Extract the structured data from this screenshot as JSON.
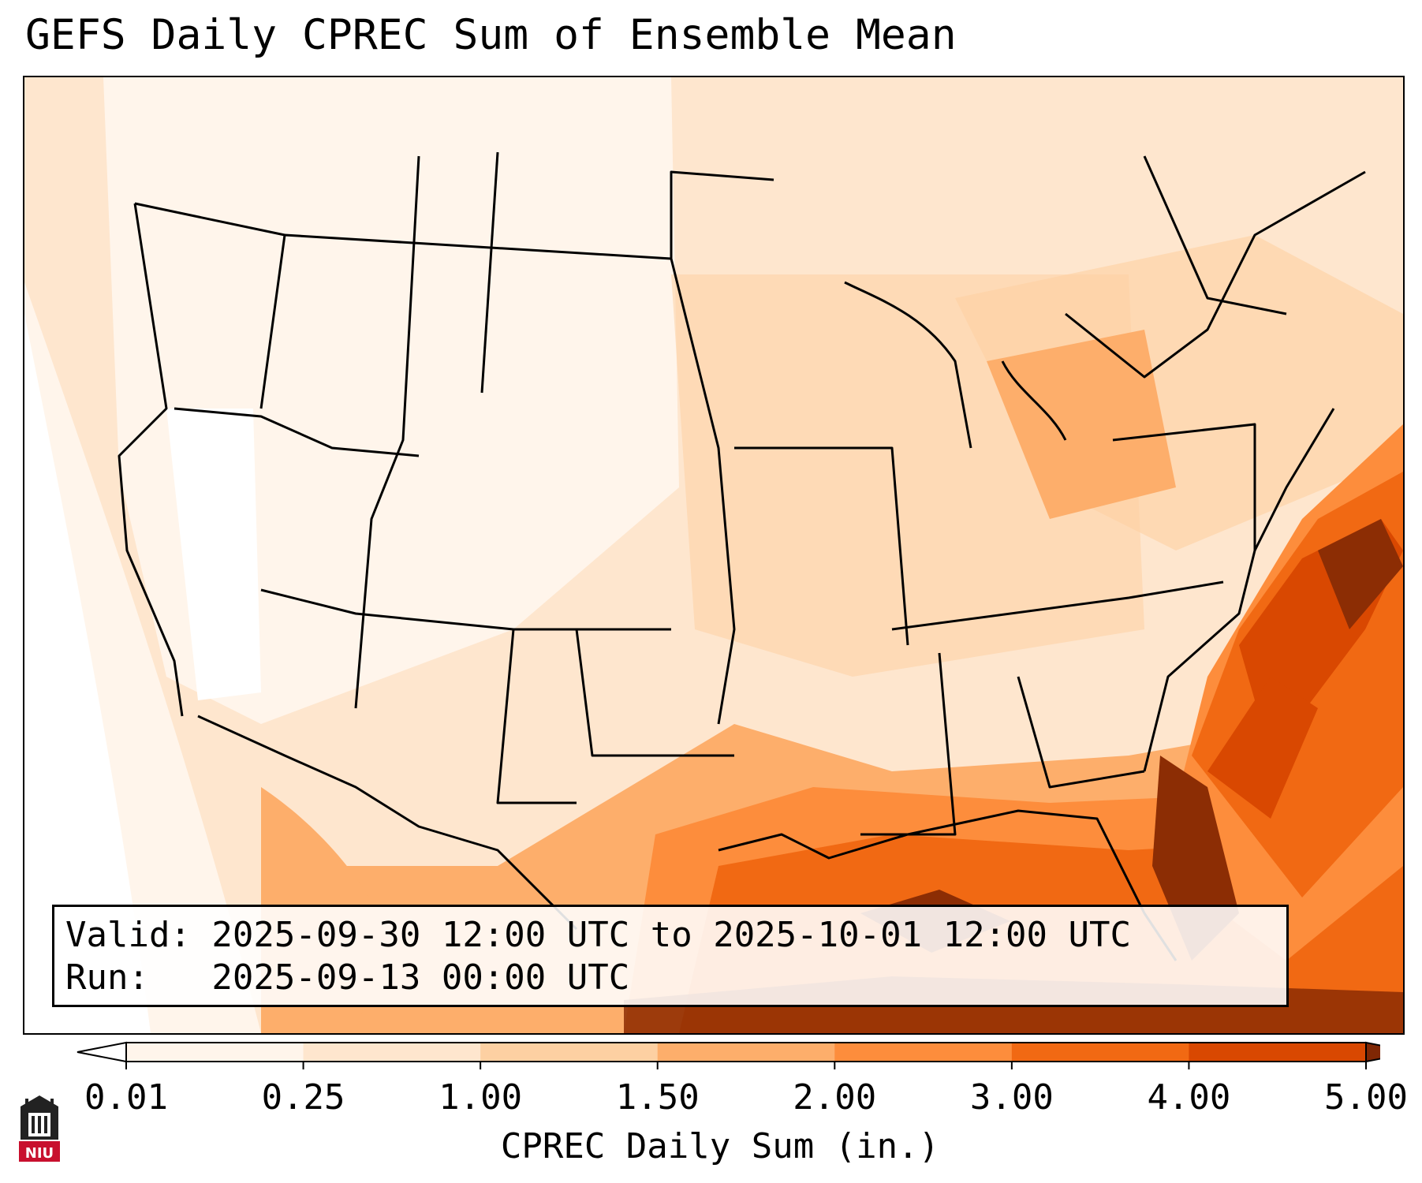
{
  "title": "GEFS Daily CPREC Sum of Ensemble Mean",
  "info_box": {
    "valid_line": "Valid: 2025-09-30 12:00 UTC to 2025-10-01 12:00 UTC",
    "run_line": "Run:   2025-09-13 00:00 UTC"
  },
  "colorbar": {
    "label": "CPREC Daily Sum (in.)",
    "ticks": [
      "0.01",
      "0.25",
      "1.00",
      "1.50",
      "2.00",
      "3.00",
      "4.00",
      "5.00"
    ],
    "colors": [
      "#fff5eb",
      "#fee6ce",
      "#fdd0a2",
      "#fdae6b",
      "#fd8d3c",
      "#f16913",
      "#d94801",
      "#8c2d04"
    ],
    "under_color": "#ffffff",
    "over_color": "#7f2704"
  },
  "logo": {
    "text": "NIU",
    "icon": "niu-tower-logo-icon"
  }
}
